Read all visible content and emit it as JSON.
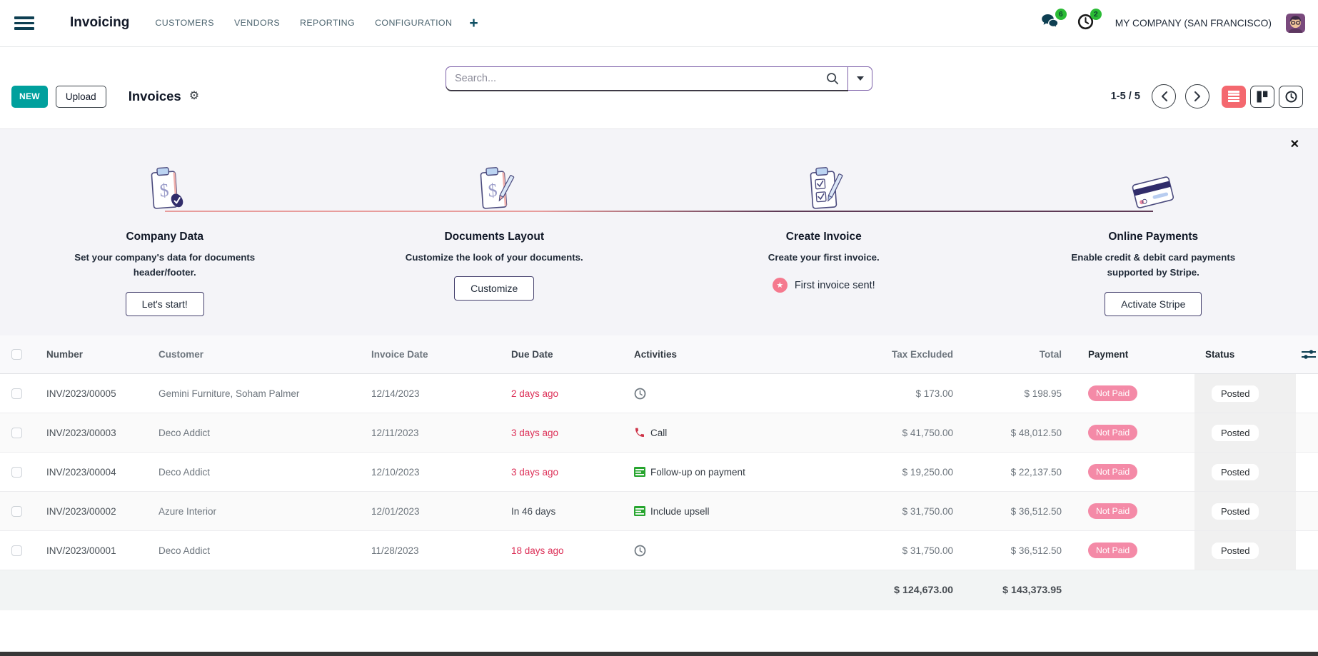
{
  "navbar": {
    "app_title": "Invoicing",
    "menus": [
      "CUSTOMERS",
      "VENDORS",
      "REPORTING",
      "CONFIGURATION"
    ],
    "messages_badge": "6",
    "activities_badge": "2",
    "company": "MY COMPANY (SAN FRANCISCO)"
  },
  "control_panel": {
    "new_button": "NEW",
    "upload_button": "Upload",
    "page_title": "Invoices",
    "search_placeholder": "Search...",
    "pager": "1-5 / 5"
  },
  "onboarding": {
    "steps": [
      {
        "icon": "clipboard-dollar-check",
        "title": "Company Data",
        "description": "Set your company's data for documents header/footer.",
        "button": "Let's start!"
      },
      {
        "icon": "clipboard-dollar-pen",
        "title": "Documents Layout",
        "description": "Customize the look of your documents.",
        "button": "Customize"
      },
      {
        "icon": "clipboard-checklist-pen",
        "title": "Create Invoice",
        "description": "Create your first invoice.",
        "done_label": "First invoice sent!"
      },
      {
        "icon": "credit-card",
        "title": "Online Payments",
        "description": "Enable credit & debit card payments supported by Stripe.",
        "button": "Activate Stripe"
      }
    ]
  },
  "table": {
    "columns": [
      "Number",
      "Customer",
      "Invoice Date",
      "Due Date",
      "Activities",
      "Tax Excluded",
      "Total",
      "Payment",
      "Status"
    ],
    "rows": [
      {
        "number": "INV/2023/00005",
        "customer": "Gemini Furniture, Soham Palmer",
        "invoice_date": "12/14/2023",
        "due_date": "2 days ago",
        "due_overdue": true,
        "activity": "clock",
        "activity_label": "",
        "tax_excluded": "$ 173.00",
        "total": "$ 198.95",
        "payment": "Not Paid",
        "status": "Posted"
      },
      {
        "number": "INV/2023/00003",
        "customer": "Deco Addict",
        "invoice_date": "12/11/2023",
        "due_date": "3 days ago",
        "due_overdue": true,
        "activity": "phone",
        "activity_label": "Call",
        "tax_excluded": "$ 41,750.00",
        "total": "$ 48,012.50",
        "payment": "Not Paid",
        "status": "Posted"
      },
      {
        "number": "INV/2023/00004",
        "customer": "Deco Addict",
        "invoice_date": "12/10/2023",
        "due_date": "3 days ago",
        "due_overdue": true,
        "activity": "list",
        "activity_label": "Follow-up on payment",
        "tax_excluded": "$ 19,250.00",
        "total": "$ 22,137.50",
        "payment": "Not Paid",
        "status": "Posted"
      },
      {
        "number": "INV/2023/00002",
        "customer": "Azure Interior",
        "invoice_date": "12/01/2023",
        "due_date": "In 46 days",
        "due_overdue": false,
        "activity": "list",
        "activity_label": "Include upsell",
        "tax_excluded": "$ 31,750.00",
        "total": "$ 36,512.50",
        "payment": "Not Paid",
        "status": "Posted"
      },
      {
        "number": "INV/2023/00001",
        "customer": "Deco Addict",
        "invoice_date": "11/28/2023",
        "due_date": "18 days ago",
        "due_overdue": true,
        "activity": "clock",
        "activity_label": "",
        "tax_excluded": "$ 31,750.00",
        "total": "$ 36,512.50",
        "payment": "Not Paid",
        "status": "Posted"
      }
    ],
    "totals": {
      "tax_excluded": "$ 124,673.00",
      "total": "$ 143,373.95"
    }
  },
  "colors": {
    "primary_teal": "#00a09d",
    "search_border_purple": "#7c5fa8",
    "overdue_red": "#dc2e56",
    "not_paid_pink": "#f48aa7",
    "activity_green": "#27a52f",
    "active_view_pink": "#f4686f",
    "badge_green": "#2abb35",
    "onboarding_bg": "#f4f4f8"
  }
}
